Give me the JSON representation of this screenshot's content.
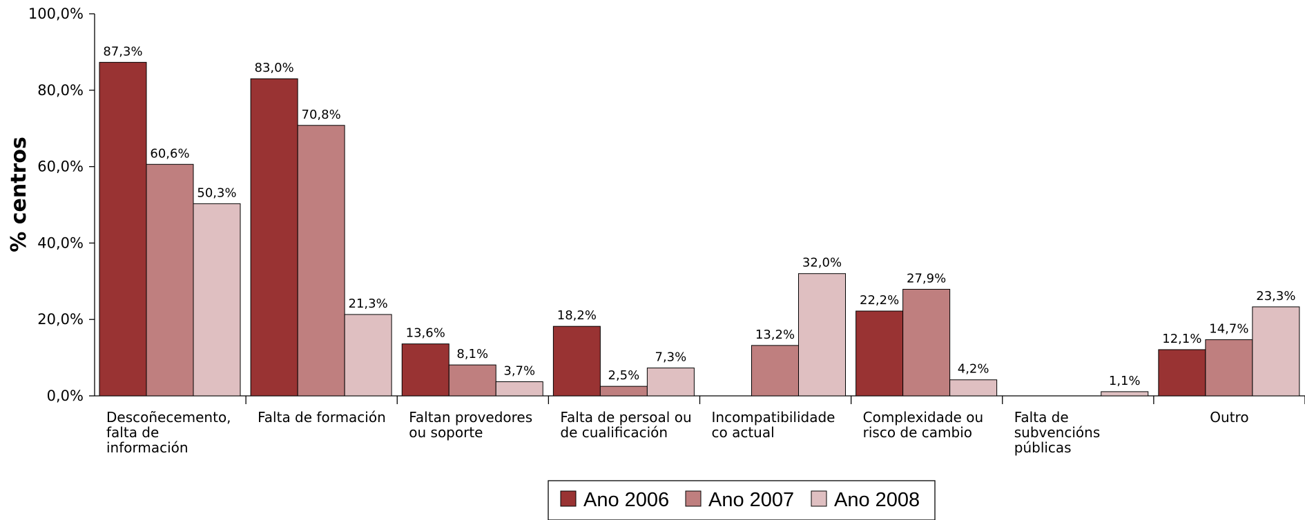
{
  "chart_data": {
    "type": "bar",
    "ylabel": "% centros",
    "ylim": [
      0,
      100
    ],
    "ytick_values": [
      0,
      20,
      40,
      60,
      80,
      100
    ],
    "ytick_labels": [
      "0,0%",
      "20,0%",
      "40,0%",
      "60,0%",
      "80,0%",
      "100,0%"
    ],
    "categories": [
      [
        "Descoñecemento,",
        "falta de",
        "información"
      ],
      [
        "Falta de formación"
      ],
      [
        "Faltan provedores",
        "ou soporte"
      ],
      [
        "Falta de persoal ou",
        "de cualificación"
      ],
      [
        "Incompatibilidade",
        "co actual"
      ],
      [
        "Complexidade ou",
        "risco de cambio"
      ],
      [
        "Falta de",
        "subvencións",
        "públicas"
      ],
      [
        "Outro"
      ]
    ],
    "series": [
      {
        "name": "Ano 2006",
        "color": "#993333",
        "values": [
          87.3,
          83.0,
          13.6,
          18.2,
          null,
          22.2,
          null,
          12.1
        ],
        "labels": [
          "87,3%",
          "83,0%",
          "13,6%",
          "18,2%",
          "",
          "22,2%",
          "",
          "12,1%"
        ]
      },
      {
        "name": "Ano 2007",
        "color": "#bf7f7f",
        "values": [
          60.6,
          70.8,
          8.1,
          2.5,
          13.2,
          27.9,
          null,
          14.7
        ],
        "labels": [
          "60,6%",
          "70,8%",
          "8,1%",
          "2,5%",
          "13,2%",
          "27,9%",
          "",
          "14,7%"
        ]
      },
      {
        "name": "Ano 2008",
        "color": "#dfbfc1",
        "values": [
          50.3,
          21.3,
          3.7,
          7.3,
          32.0,
          4.2,
          1.1,
          23.3
        ],
        "labels": [
          "50,3%",
          "21,3%",
          "3,7%",
          "7,3%",
          "32,0%",
          "4,2%",
          "1,1%",
          "23,3%"
        ]
      }
    ],
    "legend_position": "bottom-center",
    "grid": false
  }
}
